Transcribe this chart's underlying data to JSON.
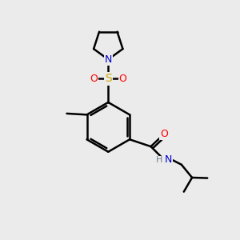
{
  "background_color": "#ebebeb",
  "bond_color": "#000000",
  "atom_colors": {
    "N": "#0000cc",
    "O": "#ff0000",
    "S": "#ccaa00",
    "C": "#000000",
    "H": "#708090"
  },
  "figsize": [
    3.0,
    3.0
  ],
  "dpi": 100,
  "xlim": [
    0,
    10
  ],
  "ylim": [
    0,
    10
  ]
}
